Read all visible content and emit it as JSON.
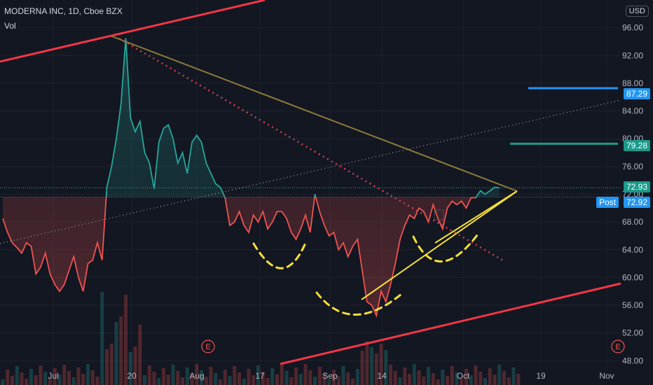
{
  "header": {
    "symbol_line": "MODERNA INC, 1D, Cboe BZX",
    "volume_label": "Vol"
  },
  "currency_button": "USD",
  "colors": {
    "background": "#131722",
    "price_up": "#26a69a",
    "price_down": "#ef5350",
    "channel": "#f23645",
    "pattern": "#f5e038",
    "target_blue": "#2196f3",
    "target_teal": "#1a9a8a",
    "downtrend": "#8b7a3a",
    "grid": "#1e222d"
  },
  "price_tags": {
    "target_high": "87.29",
    "target_mid": "79.28",
    "last_close": "72.93",
    "post_label": "Post",
    "post_price": "72.92"
  },
  "earnings_markers": [
    "E",
    "E"
  ],
  "chart_data": {
    "type": "area",
    "symbol": "MODERNA INC",
    "interval": "1D",
    "exchange": "Cboe BZX",
    "y_axis": {
      "ticks": [
        "48.00",
        "52.00",
        "56.00",
        "60.00",
        "64.00",
        "68.00",
        "72.00",
        "76.00",
        "80.00",
        "84.00",
        "88.00",
        "92.00",
        "96.00"
      ],
      "ylim": [
        44.5,
        100
      ]
    },
    "x_axis": {
      "tick_labels": [
        "Jul",
        "20",
        "Aug",
        "17",
        "Sep",
        "14",
        "Oct",
        "19",
        "Nov"
      ]
    },
    "baseline": 71.6,
    "series": [
      {
        "values": [
          [
            0,
            68.5
          ],
          [
            1,
            66.5
          ],
          [
            2,
            65.0
          ],
          [
            3,
            64.3
          ],
          [
            4,
            63.5
          ],
          [
            5,
            65.0
          ],
          [
            6,
            64.5
          ],
          [
            7,
            60.5
          ],
          [
            8,
            61.5
          ],
          [
            9,
            63.5
          ],
          [
            10,
            60.5
          ],
          [
            11,
            59.0
          ],
          [
            12,
            58.0
          ],
          [
            13,
            59.0
          ],
          [
            14,
            61.0
          ],
          [
            15,
            63.0
          ],
          [
            16,
            60.0
          ],
          [
            17,
            58.0
          ],
          [
            18,
            62.0
          ],
          [
            19,
            62.5
          ],
          [
            20,
            65.0
          ],
          [
            21,
            62.5
          ],
          [
            22,
            73.0
          ],
          [
            23,
            76.0
          ],
          [
            24,
            80.0
          ],
          [
            25,
            85.0
          ],
          [
            26,
            94.5
          ],
          [
            27,
            83.0
          ],
          [
            28,
            81.0
          ],
          [
            29,
            82.5
          ],
          [
            30,
            78.0
          ],
          [
            31,
            76.5
          ],
          [
            32,
            72.8
          ],
          [
            33,
            79.5
          ],
          [
            34,
            81.5
          ],
          [
            35,
            82.0
          ],
          [
            36,
            80.0
          ],
          [
            37,
            76.5
          ],
          [
            38,
            78.0
          ],
          [
            39,
            75.0
          ],
          [
            40,
            79.5
          ],
          [
            41,
            80.5
          ],
          [
            42,
            79.5
          ],
          [
            43,
            76.5
          ],
          [
            44,
            75.0
          ],
          [
            45,
            73.5
          ],
          [
            46,
            73.0
          ],
          [
            47,
            71.5
          ],
          [
            48,
            67.5
          ],
          [
            49,
            68.0
          ],
          [
            50,
            69.5
          ],
          [
            51,
            67.5
          ],
          [
            52,
            66.5
          ],
          [
            53,
            69.0
          ],
          [
            54,
            68.0
          ],
          [
            55,
            69.5
          ],
          [
            56,
            67.0
          ],
          [
            57,
            68.0
          ],
          [
            58,
            69.5
          ],
          [
            59,
            69.5
          ],
          [
            60,
            68.5
          ],
          [
            61,
            66.5
          ],
          [
            62,
            65.5
          ],
          [
            63,
            67.0
          ],
          [
            64,
            69.0
          ],
          [
            65,
            66.5
          ],
          [
            66,
            72.0
          ],
          [
            67,
            69.5
          ],
          [
            68,
            67.5
          ],
          [
            69,
            66.0
          ],
          [
            70,
            66.5
          ],
          [
            71,
            64.0
          ],
          [
            72,
            65.0
          ],
          [
            73,
            63.0
          ],
          [
            74,
            64.5
          ],
          [
            75,
            65.5
          ],
          [
            76,
            61.0
          ],
          [
            77,
            56.5
          ],
          [
            78,
            56.0
          ],
          [
            79,
            54.5
          ],
          [
            80,
            58.0
          ],
          [
            81,
            56.5
          ],
          [
            82,
            59.0
          ],
          [
            83,
            62.0
          ],
          [
            84,
            65.5
          ],
          [
            85,
            67.5
          ],
          [
            86,
            69.0
          ],
          [
            87,
            68.5
          ],
          [
            88,
            70.0
          ],
          [
            89,
            69.5
          ],
          [
            90,
            68.0
          ],
          [
            91,
            70.5
          ],
          [
            92,
            68.5
          ],
          [
            93,
            67.0
          ],
          [
            94,
            70.0
          ],
          [
            95,
            71.0
          ],
          [
            96,
            70.5
          ],
          [
            97,
            71.0
          ],
          [
            98,
            70.0
          ],
          [
            99,
            71.5
          ],
          [
            100,
            71.5
          ],
          [
            101,
            72.5
          ],
          [
            102,
            72.0
          ],
          [
            103,
            72.5
          ],
          [
            104,
            73.0
          ],
          [
            105,
            72.93
          ]
        ]
      }
    ]
  }
}
